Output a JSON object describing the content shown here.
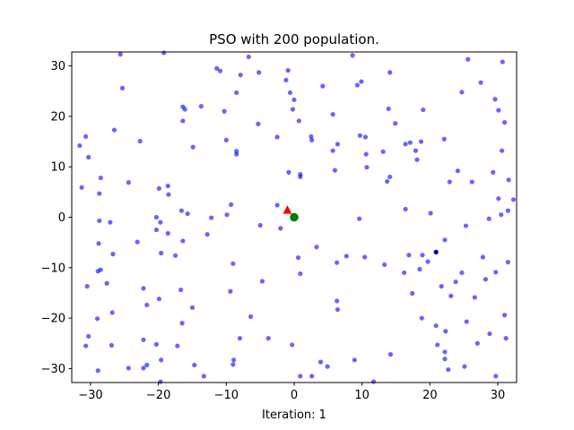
{
  "chart_data": {
    "type": "scatter",
    "title": "PSO with 200 population.",
    "xlabel": "Iteration: 1",
    "ylabel": "",
    "xlim": [
      -32.768,
      32.768
    ],
    "ylim": [
      -32.768,
      32.768
    ],
    "xticks": [
      -30,
      -20,
      -10,
      0,
      10,
      20,
      30
    ],
    "yticks": [
      -30,
      -20,
      -10,
      0,
      10,
      20,
      30
    ],
    "xtick_labels": [
      "−30",
      "−20",
      "−10",
      "0",
      "10",
      "20",
      "30"
    ],
    "ytick_labels": [
      "−30",
      "−20",
      "−10",
      "0",
      "10",
      "20",
      "30"
    ],
    "grid": false,
    "colors": {
      "particles": "#0000ff",
      "global_best": "#008000",
      "current_best": "#ff0000"
    },
    "series": [
      {
        "marker": "circle",
        "points": [
          [
            -25.6,
            32.3
          ],
          [
            -19.2,
            32.6
          ],
          [
            -6.7,
            31.8
          ],
          [
            -11.4,
            29.5
          ],
          [
            -10.9,
            29.0
          ],
          [
            -0.9,
            29.1
          ],
          [
            -7.9,
            28.2
          ],
          [
            -5.2,
            28.7
          ],
          [
            8.6,
            32.1
          ],
          [
            25.6,
            31.3
          ],
          [
            30.7,
            30.8
          ],
          [
            14.1,
            28.7
          ],
          [
            -1.2,
            27.2
          ],
          [
            -25.3,
            25.6
          ],
          [
            -8.5,
            24.7
          ],
          [
            -0.6,
            24.7
          ],
          [
            4.2,
            26.0
          ],
          [
            9.3,
            26.2
          ],
          [
            9.9,
            26.9
          ],
          [
            27.5,
            26.7
          ],
          [
            24.7,
            24.8
          ],
          [
            0.0,
            23.3
          ],
          [
            -0.2,
            21.4
          ],
          [
            -13.7,
            22.0
          ],
          [
            -16.4,
            21.9
          ],
          [
            -16.1,
            21.4
          ],
          [
            -10.3,
            21.0
          ],
          [
            5.7,
            20.4
          ],
          [
            13.9,
            21.5
          ],
          [
            19.0,
            21.3
          ],
          [
            29.6,
            23.4
          ],
          [
            30.1,
            21.2
          ],
          [
            0.7,
            19.1
          ],
          [
            -16.4,
            19.1
          ],
          [
            -5.3,
            18.5
          ],
          [
            14.9,
            18.6
          ],
          [
            31.0,
            18.8
          ],
          [
            -26.5,
            17.3
          ],
          [
            -30.7,
            16.0
          ],
          [
            -31.6,
            14.2
          ],
          [
            -22.7,
            15.1
          ],
          [
            -10.0,
            15.3
          ],
          [
            2.5,
            16.0
          ],
          [
            2.6,
            15.3
          ],
          [
            -2.5,
            15.9
          ],
          [
            22.1,
            15.5
          ],
          [
            9.7,
            16.2
          ],
          [
            10.5,
            15.9
          ],
          [
            16.4,
            14.5
          ],
          [
            17.1,
            14.8
          ],
          [
            18.7,
            15.0
          ],
          [
            6.4,
            14.5
          ],
          [
            -8.5,
            13.1
          ],
          [
            -8.5,
            12.5
          ],
          [
            -14.9,
            13.9
          ],
          [
            5.7,
            13.2
          ],
          [
            10.6,
            12.5
          ],
          [
            13.1,
            13.0
          ],
          [
            17.9,
            13.2
          ],
          [
            30.6,
            13.2
          ],
          [
            -30.3,
            11.9
          ],
          [
            18.1,
            11.4
          ],
          [
            6.0,
            9.3
          ],
          [
            -0.8,
            8.9
          ],
          [
            0.9,
            8.5
          ],
          [
            0.9,
            8.0
          ],
          [
            10.7,
            9.9
          ],
          [
            14.1,
            8.0
          ],
          [
            13.7,
            7.1
          ],
          [
            24.1,
            9.2
          ],
          [
            22.9,
            7.0
          ],
          [
            26.2,
            7.0
          ],
          [
            29.3,
            8.9
          ],
          [
            31.6,
            7.4
          ],
          [
            -28.5,
            7.8
          ],
          [
            -28.7,
            4.7
          ],
          [
            -24.4,
            6.9
          ],
          [
            -18.6,
            6.2
          ],
          [
            -19.9,
            5.7
          ],
          [
            -18.5,
            4.5
          ],
          [
            -31.3,
            5.9
          ],
          [
            30.1,
            3.7
          ],
          [
            32.3,
            3.5
          ],
          [
            -2.5,
            2.4
          ],
          [
            -9.3,
            2.5
          ],
          [
            -9.9,
            0.5
          ],
          [
            -12.2,
            -0.1
          ],
          [
            -16.6,
            1.3
          ],
          [
            -15.7,
            0.7
          ],
          [
            -20.3,
            0.0
          ],
          [
            -19.7,
            -1.0
          ],
          [
            -28.7,
            -0.7
          ],
          [
            -27.1,
            -1.0
          ],
          [
            -18.6,
            -3.2
          ],
          [
            -20.3,
            -2.5
          ],
          [
            -5.0,
            -1.6
          ],
          [
            -2.0,
            -2.2
          ],
          [
            9.6,
            -0.3
          ],
          [
            16.4,
            1.6
          ],
          [
            20.1,
            0.8
          ],
          [
            28.7,
            -0.3
          ],
          [
            30.5,
            0.5
          ],
          [
            31.5,
            1.3
          ],
          [
            25.3,
            -1.7
          ],
          [
            -12.8,
            -3.4
          ],
          [
            -23.1,
            -4.9
          ],
          [
            -28.8,
            -5.2
          ],
          [
            -26.7,
            -7.3
          ],
          [
            -16.4,
            -4.7
          ],
          [
            -19.6,
            -7.1
          ],
          [
            -17.5,
            -7.6
          ],
          [
            3.3,
            -5.9
          ],
          [
            0.6,
            -8.0
          ],
          [
            7.7,
            -7.7
          ],
          [
            6.3,
            -9.0
          ],
          [
            10.4,
            -7.9
          ],
          [
            13.3,
            -9.4
          ],
          [
            16.9,
            -7.5
          ],
          [
            18.9,
            -7.5
          ],
          [
            22.2,
            -4.5
          ],
          [
            27.8,
            -7.9
          ],
          [
            31.5,
            -8.9
          ],
          [
            -28.5,
            -10.4
          ],
          [
            -28.9,
            -10.7
          ],
          [
            -9.0,
            -9.2
          ],
          [
            0.9,
            -11.2
          ],
          [
            18.5,
            -10.3
          ],
          [
            19.7,
            -8.8
          ],
          [
            16.2,
            -11.0
          ],
          [
            24.7,
            -11.0
          ],
          [
            29.7,
            -10.9
          ],
          [
            28.2,
            -12.3
          ],
          [
            -27.6,
            -13.1
          ],
          [
            -30.5,
            -13.7
          ],
          [
            -4.7,
            -12.7
          ],
          [
            23.8,
            -12.8
          ],
          [
            -22.2,
            -14.1
          ],
          [
            -16.7,
            -14.4
          ],
          [
            -9.4,
            -14.7
          ],
          [
            -19.9,
            -16.2
          ],
          [
            -21.7,
            -17.4
          ],
          [
            17.4,
            -15.1
          ],
          [
            21.7,
            -13.7
          ],
          [
            23.1,
            -15.6
          ],
          [
            26.6,
            -15.9
          ],
          [
            6.3,
            -16.6
          ],
          [
            6.4,
            -18.3
          ],
          [
            -26.8,
            -18.9
          ],
          [
            -29.0,
            -20.1
          ],
          [
            -15.0,
            -17.9
          ],
          [
            -16.5,
            -21.0
          ],
          [
            -6.4,
            -19.7
          ],
          [
            18.8,
            -20.0
          ],
          [
            20.9,
            -21.5
          ],
          [
            22.3,
            -22.6
          ],
          [
            25.4,
            -20.7
          ],
          [
            31.0,
            -19.4
          ],
          [
            -30.3,
            -23.6
          ],
          [
            -8.0,
            -24.0
          ],
          [
            -3.8,
            -24.0
          ],
          [
            -22.2,
            -24.3
          ],
          [
            -20.3,
            -25.2
          ],
          [
            -17.2,
            -25.5
          ],
          [
            -30.7,
            -25.5
          ],
          [
            -26.9,
            -25.4
          ],
          [
            -0.3,
            -25.3
          ],
          [
            14.2,
            -27.2
          ],
          [
            21.1,
            -25.3
          ],
          [
            22.2,
            -26.7
          ],
          [
            27.0,
            -25.0
          ],
          [
            28.8,
            -23.1
          ],
          [
            31.2,
            -24.0
          ],
          [
            -19.6,
            -28.3
          ],
          [
            -14.7,
            -29.3
          ],
          [
            -8.9,
            -28.3
          ],
          [
            -9.0,
            -29.2
          ],
          [
            -24.4,
            -29.9
          ],
          [
            -22.2,
            -29.9
          ],
          [
            -21.7,
            -29.3
          ],
          [
            -28.9,
            -30.4
          ],
          [
            -13.3,
            -31.5
          ],
          [
            -19.7,
            -32.6
          ],
          [
            3.9,
            -28.7
          ],
          [
            4.9,
            -29.6
          ],
          [
            0.9,
            -31.5
          ],
          [
            2.6,
            -31.5
          ],
          [
            8.9,
            -28.3
          ],
          [
            11.7,
            -32.6
          ],
          [
            22.2,
            -28.1
          ],
          [
            22.7,
            -30.2
          ],
          [
            25.1,
            -29.6
          ],
          [
            29.7,
            -31.5
          ]
        ]
      },
      {
        "marker": "circle-dark",
        "points": [
          [
            20.9,
            -6.9
          ]
        ]
      }
    ],
    "global_best": {
      "marker": "circle",
      "x": 0.0,
      "y": 0.0
    },
    "current_best": {
      "marker": "triangle",
      "x": -1.0,
      "y": 1.4
    }
  }
}
